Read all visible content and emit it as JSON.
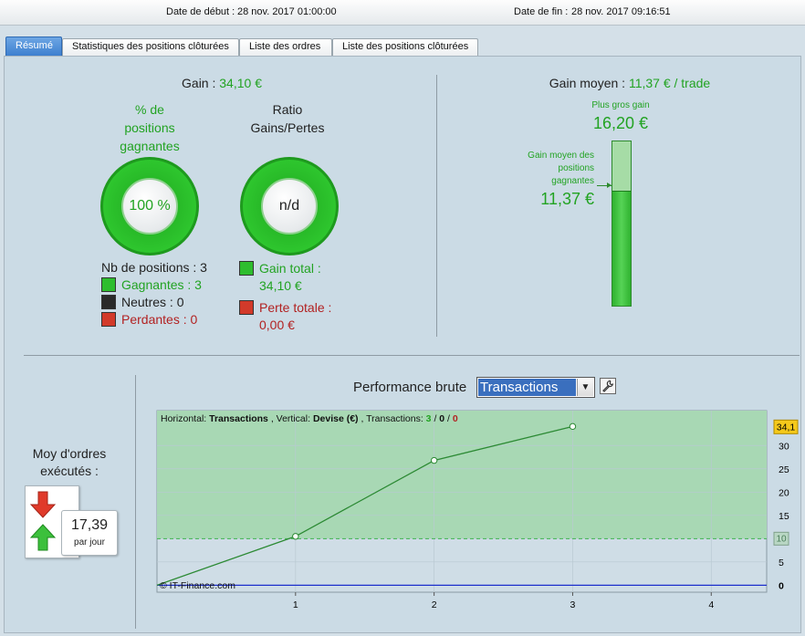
{
  "header": {
    "start_label": "Date de début :",
    "start_value": "28 nov. 2017 01:00:00",
    "end_label": "Date de fin :",
    "end_value": "28 nov. 2017 09:16:51"
  },
  "tabs": [
    {
      "label": "Résumé",
      "active": true
    },
    {
      "label": "Statistiques des positions clôturées",
      "active": false
    },
    {
      "label": "Liste des ordres",
      "active": false
    },
    {
      "label": "Liste des positions clôturées",
      "active": false
    }
  ],
  "summary": {
    "gain_label": "Gain :",
    "gain_value": "34,10 €",
    "win_pct_title_1": "% de",
    "win_pct_title_2": "positions",
    "win_pct_title_3": "gagnantes",
    "win_pct_value": "100 %",
    "ratio_title_1": "Ratio",
    "ratio_title_2": "Gains/Pertes",
    "ratio_value": "n/d",
    "nb_positions": "Nb de positions : 3",
    "winners": "Gagnantes : 3",
    "neutrals": "Neutres : 0",
    "losers": "Perdantes : 0",
    "total_gain_label": "Gain total :",
    "total_gain_value": "34,10 €",
    "total_loss_label": "Perte totale :",
    "total_loss_value": "0,00 €"
  },
  "avg": {
    "label": "Gain moyen :",
    "value": "11,37 € / trade",
    "max_label": "Plus gros gain",
    "max_value": "16,20 €",
    "avg_win_label_1": "Gain moyen des",
    "avg_win_label_2": "positions",
    "avg_win_label_3": "gagnantes",
    "avg_win_value": "11,37 €",
    "avg_fraction": 0.702
  },
  "orders": {
    "title_1": "Moy d'ordres",
    "title_2": "exécutés :",
    "value": "17,39",
    "unit": "par jour"
  },
  "performance": {
    "label": "Performance brute",
    "selected": "Transactions"
  },
  "colors": {
    "gain_green": "#22a322",
    "loss_red": "#b22222",
    "chart_fill": "#a8d8b4",
    "tab_active": "#4a8bd6"
  },
  "chart_data": {
    "type": "line",
    "info_prefix": "Horizontal:",
    "info_h": "Transactions",
    "info_mid": ", Vertical:",
    "info_v": "Devise (€)",
    "info_tx": ", Transactions:",
    "info_total": "3",
    "info_neutral": "0",
    "info_loss": "0",
    "x": [
      0,
      1,
      2,
      3
    ],
    "y": [
      0,
      10.5,
      26.8,
      34.1
    ],
    "xlim": [
      0,
      4.4
    ],
    "ylim": [
      -1.5,
      37.5
    ],
    "x_ticks": [
      "1",
      "2",
      "3",
      "4"
    ],
    "y_ticks": [
      "0",
      "5",
      "10",
      "15",
      "20",
      "25",
      "30"
    ],
    "current_value_label": "34,1",
    "avg_line_value": 10,
    "avg_line_label": "10",
    "copyright": "© IT-Finance.com"
  }
}
